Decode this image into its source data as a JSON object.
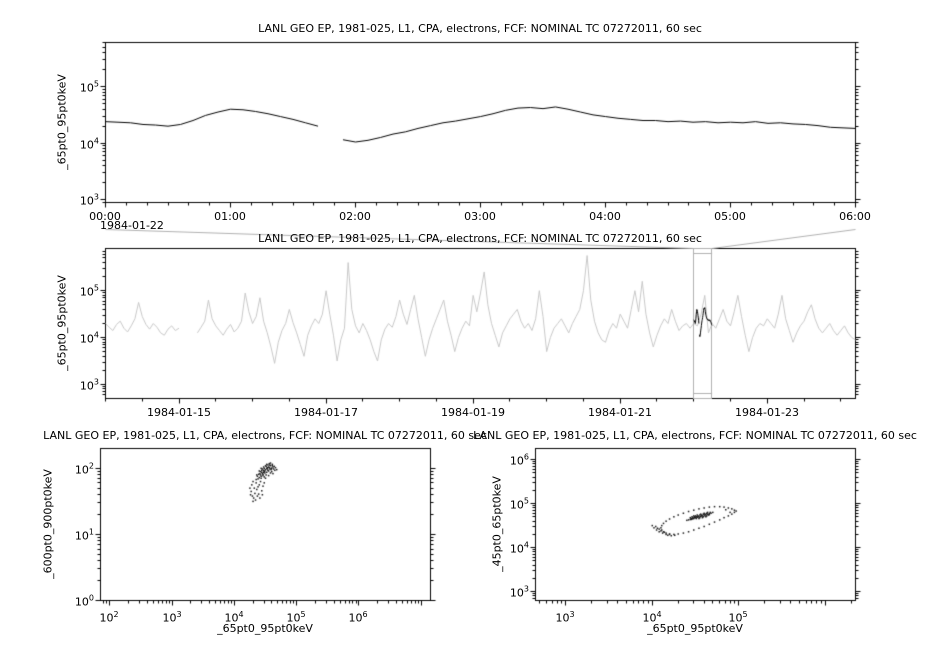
{
  "figure": {
    "background": "#ffffff",
    "frame_color": "#000000",
    "context_gray": "#c8c8c8",
    "link_gray": "#b0b0b0"
  },
  "chart_data": [
    {
      "type": "line",
      "panel": "top-detail",
      "title": "LANL GEO EP, 1981-025, L1, CPA, electrons, FCF: NOMINAL TC 07272011, 60 sec",
      "ylabel": "_65pt0_95pt0keV",
      "x_scale": "linear",
      "x_unit": "hours of 1984-01-22",
      "x_domain": [
        0,
        6
      ],
      "x_tick_values": [
        0,
        1,
        2,
        3,
        4,
        5,
        6
      ],
      "x_tick_labels": [
        "00:00",
        "01:00",
        "02:00",
        "03:00",
        "04:00",
        "05:00",
        "06:00"
      ],
      "x_minor_step": 0.16667,
      "x_date_label": "1984-01-22",
      "y_scale": "log",
      "y_domain_log10": [
        2.95,
        5.78
      ],
      "y_label_exponents": [
        3,
        4,
        5
      ],
      "line_color": "#000000",
      "series": {
        "x_start": 0,
        "x_step": 0.1,
        "values_log10": [
          4.38,
          4.37,
          4.36,
          4.33,
          4.32,
          4.3,
          4.33,
          4.4,
          4.49,
          4.55,
          4.6,
          4.59,
          4.56,
          4.52,
          4.47,
          4.42,
          4.36,
          4.3,
          null,
          4.06,
          4.02,
          4.05,
          4.1,
          4.16,
          4.2,
          4.26,
          4.31,
          4.36,
          4.39,
          4.43,
          4.47,
          4.52,
          4.58,
          4.62,
          4.63,
          4.61,
          4.64,
          4.6,
          4.55,
          4.5,
          4.47,
          4.44,
          4.42,
          4.4,
          4.4,
          4.38,
          4.39,
          4.37,
          4.38,
          4.36,
          4.37,
          4.36,
          4.38,
          4.35,
          4.36,
          4.34,
          4.33,
          4.31,
          4.28,
          4.27,
          4.26
        ]
      }
    },
    {
      "type": "line",
      "panel": "middle-context",
      "title": "LANL GEO EP, 1981-025, L1, CPA, electrons, FCF: NOMINAL TC 07272011, 60 sec",
      "ylabel": "_65pt0_95pt0keV",
      "x_scale": "linear",
      "x_unit": "days since 1984-01-14 00:00",
      "x_domain": [
        0,
        10.2
      ],
      "x_tick_values": [
        1,
        3,
        5,
        7,
        9
      ],
      "x_tick_labels": [
        "1984-01-15",
        "1984-01-17",
        "1984-01-19",
        "1984-01-21",
        "1984-01-23"
      ],
      "x_minor_step": 0.5,
      "y_scale": "log",
      "y_domain_log10": [
        2.7,
        5.9
      ],
      "y_label_exponents": [
        3,
        4,
        5
      ],
      "line_color": "#c8c8c8",
      "selection": {
        "x_start": 8.0,
        "x_end": 8.25,
        "color": "#b0b0b0",
        "highlight_color": "#000000",
        "note": "zoom window shown in top panel (1984-01-22 00:00 to 06:00)"
      },
      "series": {
        "x_start": 0,
        "x_step": 0.05,
        "values_log10": [
          4.3,
          4.22,
          4.15,
          4.28,
          4.35,
          4.2,
          4.12,
          4.25,
          4.4,
          4.75,
          4.45,
          4.28,
          4.18,
          4.3,
          4.22,
          4.1,
          4.05,
          4.18,
          4.25,
          4.15,
          4.2,
          null,
          null,
          null,
          null,
          4.1,
          4.22,
          4.35,
          4.8,
          4.4,
          4.25,
          4.15,
          4.05,
          4.18,
          4.28,
          4.12,
          4.2,
          4.35,
          4.95,
          4.55,
          4.3,
          4.45,
          4.85,
          4.35,
          4.1,
          3.8,
          3.45,
          3.9,
          4.15,
          4.3,
          4.6,
          4.32,
          4.1,
          3.85,
          3.6,
          4.05,
          4.25,
          4.4,
          4.3,
          4.5,
          5.0,
          4.5,
          4.05,
          3.5,
          3.95,
          4.2,
          5.6,
          4.6,
          4.25,
          4.1,
          4.3,
          4.15,
          3.95,
          3.7,
          3.5,
          3.95,
          4.18,
          4.3,
          4.22,
          4.45,
          4.8,
          4.5,
          4.28,
          4.6,
          4.9,
          4.4,
          4.0,
          3.6,
          3.95,
          4.2,
          4.4,
          4.6,
          4.8,
          4.35,
          4.05,
          3.7,
          4.0,
          4.2,
          4.35,
          4.25,
          4.9,
          4.55,
          4.95,
          5.4,
          4.7,
          4.3,
          4.05,
          3.8,
          4.1,
          4.25,
          4.4,
          4.5,
          4.6,
          4.35,
          4.2,
          4.3,
          4.15,
          4.4,
          5.0,
          4.45,
          3.7,
          4.0,
          4.2,
          4.3,
          4.4,
          4.25,
          4.1,
          4.3,
          4.45,
          4.6,
          5.0,
          5.75,
          4.8,
          4.35,
          4.1,
          3.95,
          3.9,
          4.15,
          4.3,
          4.2,
          4.5,
          4.35,
          4.2,
          4.6,
          5.0,
          4.55,
          5.2,
          4.5,
          4.1,
          3.8,
          4.05,
          4.25,
          4.4,
          4.3,
          4.6,
          4.35,
          4.15,
          4.25,
          4.3,
          4.2,
          4.3,
          4.25,
          4.5,
          4.9,
          4.1,
          4.3,
          4.2,
          4.4,
          4.6,
          4.35,
          4.25,
          4.55,
          4.9,
          4.45,
          4.05,
          3.7,
          4.0,
          4.2,
          4.3,
          4.25,
          4.4,
          4.3,
          4.2,
          4.5,
          4.9,
          4.4,
          4.15,
          3.9,
          4.1,
          4.25,
          4.35,
          4.55,
          4.7,
          4.4,
          4.2,
          4.1,
          4.2,
          4.3,
          4.15,
          4.05,
          4.15,
          4.25,
          4.1,
          4.0,
          3.95
        ]
      }
    },
    {
      "type": "scatter",
      "panel": "bottom-left",
      "title": "LANL GEO EP, 1981-025, L1, CPA, electrons, FCF: NOMINAL TC 07272011, 60 sec",
      "xlabel": "_65pt0_95pt0keV",
      "ylabel": "_600pt0_900pt0keV",
      "x_scale": "log",
      "x_domain_log10": [
        1.85,
        7.15
      ],
      "x_label_exponents": [
        2,
        3,
        4,
        5,
        6
      ],
      "y_scale": "log",
      "y_domain_log10": [
        0,
        2.3
      ],
      "y_label_exponents": [
        0,
        1,
        2
      ],
      "point_color": "#1a1a1a",
      "points_log10": [
        [
          4.5,
          1.98
        ],
        [
          4.52,
          2.0
        ],
        [
          4.48,
          1.95
        ],
        [
          4.55,
          2.02
        ],
        [
          4.45,
          1.92
        ],
        [
          4.58,
          2.04
        ],
        [
          4.42,
          1.9
        ],
        [
          4.6,
          2.0
        ],
        [
          4.47,
          1.97
        ],
        [
          4.53,
          1.99
        ],
        [
          4.44,
          1.94
        ],
        [
          4.56,
          2.01
        ],
        [
          4.49,
          1.96
        ],
        [
          4.51,
          2.03
        ],
        [
          4.46,
          1.91
        ],
        [
          4.59,
          1.98
        ],
        [
          4.43,
          1.88
        ],
        [
          4.62,
          2.02
        ],
        [
          4.48,
          2.0
        ],
        [
          4.54,
          1.97
        ],
        [
          4.4,
          1.86
        ],
        [
          4.57,
          2.05
        ],
        [
          4.45,
          1.99
        ],
        [
          4.52,
          1.94
        ],
        [
          4.47,
          2.02
        ],
        [
          4.55,
          1.96
        ],
        [
          4.41,
          1.92
        ],
        [
          4.63,
          1.99
        ],
        [
          4.5,
          2.04
        ],
        [
          4.58,
          1.93
        ],
        [
          4.38,
          1.84
        ],
        [
          4.61,
          2.06
        ],
        [
          4.46,
          1.89
        ],
        [
          4.53,
          2.01
        ],
        [
          4.49,
          1.93
        ],
        [
          4.56,
          2.07
        ],
        [
          4.44,
          1.97
        ],
        [
          4.64,
          2.03
        ],
        [
          4.51,
          1.9
        ],
        [
          4.59,
          2.0
        ],
        [
          4.37,
          1.88
        ],
        [
          4.65,
          1.97
        ],
        [
          4.42,
          1.95
        ],
        [
          4.54,
          2.05
        ],
        [
          4.48,
          1.87
        ],
        [
          4.57,
          1.99
        ],
        [
          4.39,
          1.91
        ],
        [
          4.66,
          2.01
        ],
        [
          4.52,
          2.06
        ],
        [
          4.6,
          1.95
        ],
        [
          4.36,
          1.9
        ],
        [
          4.68,
          1.98
        ],
        [
          4.43,
          2.0
        ],
        [
          4.55,
          1.89
        ],
        [
          4.47,
          1.94
        ],
        [
          4.58,
          2.08
        ],
        [
          4.4,
          1.96
        ],
        [
          4.62,
          1.92
        ],
        [
          4.5,
          1.85
        ],
        [
          4.61,
          2.04
        ],
        [
          4.3,
          1.8
        ],
        [
          4.28,
          1.75
        ],
        [
          4.35,
          1.78
        ],
        [
          4.32,
          1.7
        ],
        [
          4.27,
          1.65
        ],
        [
          4.38,
          1.72
        ],
        [
          4.33,
          1.62
        ],
        [
          4.29,
          1.58
        ],
        [
          4.36,
          1.68
        ],
        [
          4.31,
          1.55
        ],
        [
          4.4,
          1.75
        ],
        [
          4.26,
          1.6
        ],
        [
          4.34,
          1.52
        ],
        [
          4.42,
          1.8
        ],
        [
          4.37,
          1.58
        ],
        [
          4.44,
          1.66
        ],
        [
          4.3,
          1.5
        ],
        [
          4.46,
          1.73
        ],
        [
          4.39,
          1.61
        ],
        [
          4.48,
          1.78
        ],
        [
          4.25,
          1.7
        ],
        [
          4.41,
          1.55
        ],
        [
          4.35,
          1.83
        ],
        [
          4.45,
          1.6
        ],
        [
          4.43,
          1.85
        ]
      ]
    },
    {
      "type": "scatter",
      "panel": "bottom-right",
      "title": "LANL GEO EP, 1981-025, L1, CPA, electrons, FCF: NOMINAL TC 07272011, 60 sec",
      "xlabel": "_65pt0_95pt0keV",
      "ylabel": "_45pt0_65pt0keV",
      "x_scale": "log",
      "x_domain_log10": [
        2.65,
        6.35
      ],
      "x_label_exponents": [
        3,
        4,
        5
      ],
      "y_scale": "log",
      "y_domain_log10": [
        2.8,
        6.25
      ],
      "y_label_exponents": [
        3,
        4,
        5,
        6
      ],
      "point_color": "#1a1a1a",
      "points_log10": [
        [
          4.95,
          4.85
        ],
        [
          4.92,
          4.88
        ],
        [
          4.88,
          4.9
        ],
        [
          4.83,
          4.92
        ],
        [
          4.78,
          4.93
        ],
        [
          4.72,
          4.93
        ],
        [
          4.66,
          4.92
        ],
        [
          4.6,
          4.9
        ],
        [
          4.54,
          4.88
        ],
        [
          4.48,
          4.85
        ],
        [
          4.42,
          4.82
        ],
        [
          4.36,
          4.78
        ],
        [
          4.3,
          4.74
        ],
        [
          4.25,
          4.7
        ],
        [
          4.2,
          4.65
        ],
        [
          4.16,
          4.6
        ],
        [
          4.13,
          4.55
        ],
        [
          4.11,
          4.5
        ],
        [
          4.1,
          4.45
        ],
        [
          4.11,
          4.4
        ],
        [
          4.13,
          4.36
        ],
        [
          4.16,
          4.33
        ],
        [
          4.2,
          4.31
        ],
        [
          4.25,
          4.3
        ],
        [
          4.3,
          4.31
        ],
        [
          4.36,
          4.33
        ],
        [
          4.42,
          4.36
        ],
        [
          4.48,
          4.4
        ],
        [
          4.54,
          4.44
        ],
        [
          4.6,
          4.48
        ],
        [
          4.66,
          4.53
        ],
        [
          4.72,
          4.58
        ],
        [
          4.78,
          4.63
        ],
        [
          4.83,
          4.68
        ],
        [
          4.88,
          4.72
        ],
        [
          4.92,
          4.76
        ],
        [
          4.95,
          4.8
        ],
        [
          4.97,
          4.83
        ],
        [
          4.9,
          4.8
        ],
        [
          4.85,
          4.86
        ],
        [
          4.4,
          4.62
        ],
        [
          4.42,
          4.63
        ],
        [
          4.44,
          4.64
        ],
        [
          4.46,
          4.65
        ],
        [
          4.48,
          4.66
        ],
        [
          4.5,
          4.68
        ],
        [
          4.52,
          4.69
        ],
        [
          4.54,
          4.7
        ],
        [
          4.56,
          4.71
        ],
        [
          4.58,
          4.72
        ],
        [
          4.6,
          4.74
        ],
        [
          4.62,
          4.75
        ],
        [
          4.64,
          4.76
        ],
        [
          4.66,
          4.77
        ],
        [
          4.68,
          4.78
        ],
        [
          4.7,
          4.8
        ],
        [
          4.45,
          4.66
        ],
        [
          4.47,
          4.68
        ],
        [
          4.49,
          4.7
        ],
        [
          4.51,
          4.66
        ],
        [
          4.53,
          4.72
        ],
        [
          4.55,
          4.68
        ],
        [
          4.57,
          4.74
        ],
        [
          4.59,
          4.7
        ],
        [
          4.61,
          4.72
        ],
        [
          4.63,
          4.78
        ],
        [
          4.65,
          4.74
        ],
        [
          4.67,
          4.8
        ],
        [
          4.52,
          4.74
        ],
        [
          4.56,
          4.76
        ],
        [
          4.6,
          4.78
        ],
        [
          4.48,
          4.72
        ],
        [
          4.44,
          4.68
        ],
        [
          4.58,
          4.68
        ],
        [
          4.62,
          4.7
        ],
        [
          4.54,
          4.66
        ],
        [
          4.5,
          4.72
        ],
        [
          4.46,
          4.7
        ],
        [
          4.64,
          4.8
        ],
        [
          4.66,
          4.75
        ],
        [
          4.53,
          4.7
        ],
        [
          4.57,
          4.72
        ],
        [
          4.61,
          4.76
        ],
        [
          4.49,
          4.68
        ],
        [
          4.55,
          4.74
        ],
        [
          4.59,
          4.76
        ],
        [
          4.63,
          4.72
        ],
        [
          4.51,
          4.7
        ],
        [
          4.47,
          4.66
        ],
        [
          4.45,
          4.64
        ],
        [
          4.05,
          4.4
        ],
        [
          4.08,
          4.36
        ],
        [
          4.12,
          4.33
        ],
        [
          4.16,
          4.3
        ],
        [
          4.02,
          4.45
        ],
        [
          4.0,
          4.5
        ],
        [
          4.06,
          4.44
        ],
        [
          4.1,
          4.38
        ],
        [
          4.18,
          4.28
        ],
        [
          4.22,
          4.27
        ],
        [
          4.04,
          4.48
        ],
        [
          4.14,
          4.35
        ],
        [
          4.2,
          4.3
        ],
        [
          4.26,
          4.28
        ],
        [
          4.08,
          4.42
        ]
      ]
    }
  ]
}
